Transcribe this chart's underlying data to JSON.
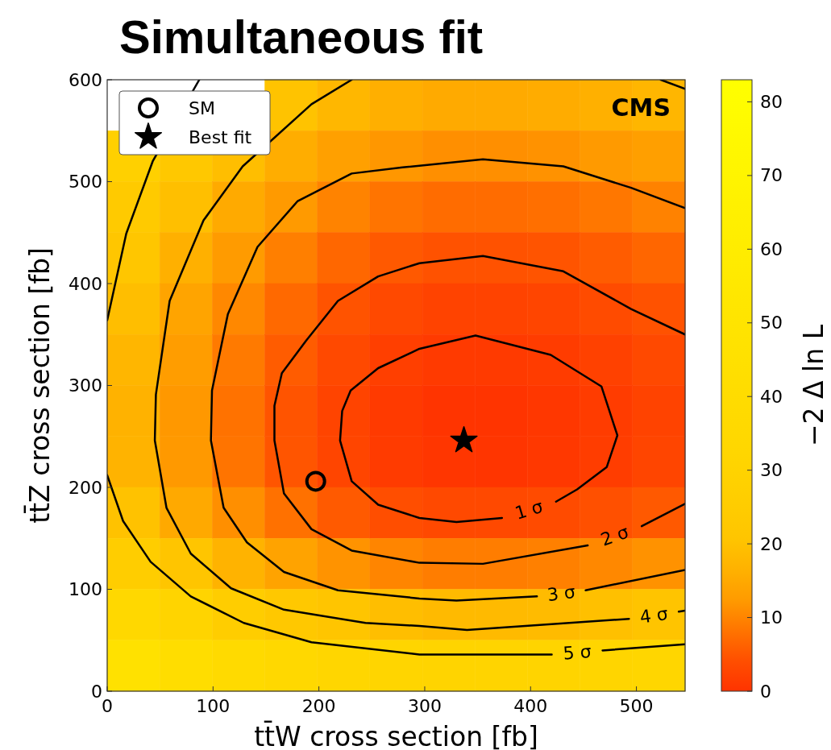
{
  "chart_data": [
    {
      "type": "heatmap",
      "clabel": "−2 Δ ln L",
      "clim": [
        0,
        83
      ],
      "cticks": [
        0,
        10,
        20,
        30,
        40,
        50,
        60,
        70,
        80
      ],
      "categories": [
        null,
        null,
        null,
        null,
        null,
        null,
        null,
        null,
        null,
        null,
        null
      ],
      "y_categories": [
        null,
        null,
        null,
        null,
        null,
        null,
        null,
        null,
        null,
        null,
        null,
        null
      ],
      "cells": [
        [
          null,
          null,
          null,
          19.9,
          17.5,
          16,
          15.2,
          15.2,
          15.5,
          16.3,
          17.4
        ],
        [
          27.4,
          22.7,
          18.8,
          15.7,
          13.3,
          11.8,
          11,
          11,
          11.3,
          12.1,
          13.2
        ],
        [
          23.8,
          19.1,
          15.2,
          12.1,
          9.7,
          8.2,
          7.4,
          7.4,
          7.7,
          8.5,
          9.6
        ],
        [
          21,
          16.3,
          12.4,
          9.3,
          6.9,
          5.4,
          4.6,
          4.6,
          4.9,
          5.7,
          6.8
        ],
        [
          18.8,
          14.1,
          10.2,
          7.1,
          4.7,
          3.2,
          2.4,
          2.4,
          2.7,
          3.5,
          4.6
        ],
        [
          17.4,
          12.7,
          8.8,
          5.7,
          3.3,
          1.8,
          1,
          1,
          1.3,
          2.1,
          3.2
        ],
        [
          16.6,
          11.9,
          8,
          4.9,
          2.5,
          1,
          0.2,
          0.2,
          0.6,
          1.3,
          2.4
        ],
        [
          16.8,
          12,
          8.2,
          5,
          2.7,
          1.2,
          0.4,
          0.3,
          0.7,
          1.5,
          2.6
        ],
        [
          19.6,
          14.9,
          11,
          7.9,
          5.5,
          4,
          3.2,
          3.2,
          3.5,
          4.3,
          5.4
        ],
        [
          25.5,
          20.8,
          16.9,
          13.8,
          11.4,
          9.9,
          9.1,
          9.1,
          9.4,
          10.2,
          11.3
        ],
        [
          34.5,
          29.8,
          25.9,
          22.8,
          20.4,
          18.9,
          18.1,
          18.1,
          18.4,
          19.2,
          20.3
        ],
        [
          46.5,
          41.8,
          37.9,
          34.8,
          32.4,
          30.9,
          30.1,
          30.1,
          30.4,
          31.2,
          32.3
        ]
      ]
    },
    {
      "type": "line",
      "title": "Simultaneous fit",
      "xlabel": "tt̄W cross section [fb]",
      "ylabel": "tt̄Z cross section [fb]",
      "xlim": [
        0,
        546
      ],
      "ylim": [
        0,
        600
      ],
      "xticks": [
        0,
        100,
        200,
        300,
        400,
        500
      ],
      "yticks": [
        0,
        100,
        200,
        300,
        400,
        500,
        600
      ],
      "legend": "top left",
      "annotations": [
        "CMS"
      ],
      "series": [
        {
          "name": "1 σ",
          "color": "#000000",
          "x": [
            373,
            330,
            295,
            256,
            231,
            220,
            222,
            230,
            256,
            295,
            348,
            419,
            467,
            482,
            472,
            444,
            424
          ],
          "values": [
            170,
            166,
            170,
            183,
            206,
            246,
            275,
            295,
            317,
            336,
            349,
            330,
            299,
            251,
            220,
            198,
            186
          ]
        },
        {
          "name": "2 σ",
          "color": "#000000",
          "x": [
            546,
            505
          ],
          "values": [
            184,
            162
          ]
        },
        {
          "color": "#000000",
          "x": [
            454,
            355,
            295,
            231,
            193,
            167,
            158,
            158,
            165,
            188,
            218,
            256,
            295,
            355,
            431,
            495,
            546
          ],
          "values": [
            143,
            125,
            126,
            138,
            159,
            194,
            246,
            280,
            312,
            344,
            383,
            407,
            420,
            427,
            412,
            375,
            350
          ]
        },
        {
          "name": "3 σ",
          "color": "#000000",
          "x": [
            546,
            452
          ],
          "values": [
            119,
            99
          ]
        },
        {
          "color": "#000000",
          "x": [
            406,
            330,
            295,
            218,
            167,
            132,
            110,
            98,
            99,
            114,
            142,
            180,
            231,
            279,
            355,
            431,
            495,
            546
          ],
          "values": [
            93,
            89,
            91,
            99,
            117,
            146,
            180,
            246,
            295,
            370,
            436,
            481,
            508,
            514,
            522,
            515,
            494,
            474
          ]
        },
        {
          "name": "4 σ",
          "color": "#000000",
          "x": [
            546,
            540
          ],
          "values": [
            79,
            78
          ]
        },
        {
          "color": "#000000",
          "x": [
            493,
            340,
            295,
            244,
            167,
            117,
            79,
            56,
            45,
            46,
            59,
            91,
            128,
            193,
            231
          ],
          "values": [
            71,
            60,
            64,
            67,
            80,
            101,
            135,
            180,
            246,
            291,
            383,
            462,
            515,
            576,
            600
          ]
        },
        {
          "color": "#000000",
          "x": [
            523,
            546
          ],
          "values": [
            600,
            591
          ]
        },
        {
          "name": "5 σ",
          "color": "#000000",
          "x": [
            546,
            468
          ],
          "values": [
            46,
            40
          ]
        },
        {
          "color": "#000000",
          "x": [
            420,
            348,
            295,
            193,
            129,
            79,
            41,
            15,
            0
          ],
          "values": [
            36,
            36,
            36,
            48,
            67,
            93,
            127,
            167,
            212
          ]
        },
        {
          "color": "#000000",
          "x": [
            0,
            18,
            43,
            87
          ],
          "values": [
            364,
            449,
            520,
            600
          ]
        },
        {
          "type": "scatter",
          "name": "SM",
          "marker": "circle",
          "color": "#000000",
          "x": [
            197
          ],
          "values": [
            206
          ]
        },
        {
          "type": "scatter",
          "name": "Best fit",
          "marker": "star",
          "color": "#000000",
          "x": [
            337
          ],
          "values": [
            246
          ]
        }
      ]
    }
  ]
}
